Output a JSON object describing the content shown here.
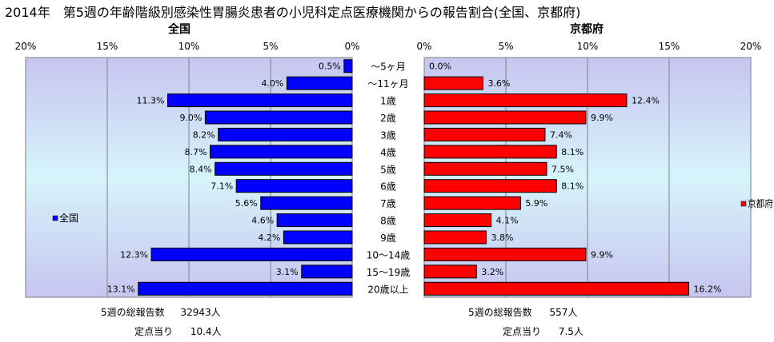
{
  "title": "2014年　第5週の年齢階級別感染性胃腸炎患者の小児科定点医療機関からの報告割合(全国、京都府)",
  "colors": {
    "national": "#0000ff",
    "kyoto": "#ff0000",
    "plot_left": "#c9c9f2",
    "plot_right": "#c9c9f2"
  },
  "chart_data": [
    {
      "type": "bar",
      "orientation": "horizontal",
      "panel_title": "全国",
      "legend_label": "全国",
      "categories": [
        "～5ヶ月",
        "～11ヶ月",
        "1歳",
        "2歳",
        "3歳",
        "4歳",
        "5歳",
        "6歳",
        "7歳",
        "8歳",
        "9歳",
        "10～14歳",
        "15～19歳",
        "20歳以上"
      ],
      "values": [
        0.5,
        4.0,
        11.3,
        9.0,
        8.2,
        8.7,
        8.4,
        7.1,
        5.6,
        4.6,
        4.2,
        12.3,
        3.1,
        13.1
      ],
      "value_labels": [
        "0.5%",
        "4.0%",
        "11.3%",
        "9.0%",
        "8.2%",
        "8.7%",
        "8.4%",
        "7.1%",
        "5.6%",
        "4.6%",
        "4.2%",
        "12.3%",
        "3.1%",
        "13.1%"
      ],
      "xlim": [
        0,
        20
      ],
      "x_ticks": [
        20,
        15,
        10,
        5,
        0
      ],
      "x_tick_labels": [
        "20%",
        "15%",
        "10%",
        "5%",
        "0%"
      ],
      "direction": "reversed",
      "grid": true
    },
    {
      "type": "bar",
      "orientation": "horizontal",
      "panel_title": "京都府",
      "legend_label": "京都府",
      "categories": [
        "～5ヶ月",
        "～11ヶ月",
        "1歳",
        "2歳",
        "3歳",
        "4歳",
        "5歳",
        "6歳",
        "7歳",
        "8歳",
        "9歳",
        "10～14歳",
        "15～19歳",
        "20歳以上"
      ],
      "values": [
        0.0,
        3.6,
        12.4,
        9.9,
        7.4,
        8.1,
        7.5,
        8.1,
        5.9,
        4.1,
        3.8,
        9.9,
        3.2,
        16.2
      ],
      "value_labels": [
        "0.0%",
        "3.6%",
        "12.4%",
        "9.9%",
        "7.4%",
        "8.1%",
        "7.5%",
        "8.1%",
        "5.9%",
        "4.1%",
        "3.8%",
        "9.9%",
        "3.2%",
        "16.2%"
      ],
      "xlim": [
        0,
        20
      ],
      "x_ticks": [
        0,
        5,
        10,
        15,
        20
      ],
      "x_tick_labels": [
        "0%",
        "5%",
        "10%",
        "15%",
        "20%"
      ],
      "direction": "normal",
      "grid": true
    }
  ],
  "footer": {
    "national_total_label": "5週の総報告数",
    "national_total_value": "32943人",
    "national_per_label": "定点当り",
    "national_per_value": "10.4人",
    "kyoto_total_label": "5週の総報告数",
    "kyoto_total_value": "557人",
    "kyoto_per_label": "定点当り",
    "kyoto_per_value": "7.5人"
  }
}
